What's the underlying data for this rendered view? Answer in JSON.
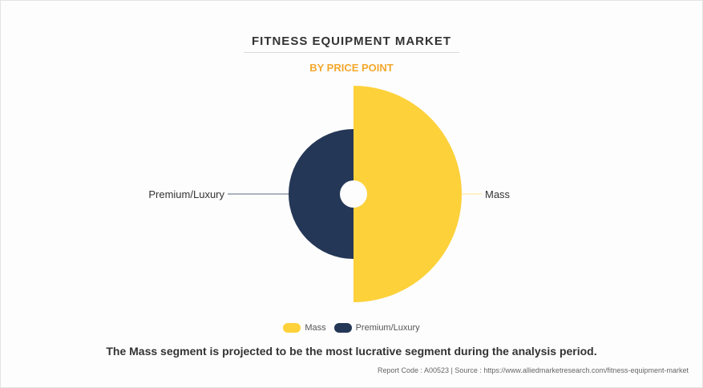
{
  "header": {
    "title": "FITNESS EQUIPMENT MARKET",
    "subtitle": "BY PRICE POINT"
  },
  "colors": {
    "subtitle": "#f4a82c",
    "mass": "#fdd13a",
    "premium": "#243757",
    "leader_premium": "#5a6a80",
    "leader_mass": "#fde58a"
  },
  "chart_data": {
    "type": "pie",
    "variant": "rose-half-donut",
    "categories": [
      "Mass",
      "Premium/Luxury"
    ],
    "values": [
      50,
      50
    ],
    "labels": [
      "Mass",
      "Premium/Luxury"
    ],
    "legend": [
      "Mass",
      "Premium/Luxury"
    ],
    "legend_position": "bottom-center"
  },
  "caption": "The Mass segment is projected to be the most lucrative segment during the analysis period.",
  "footer": {
    "text": "Report Code : A00523  |  Source : https://www.alliedmarketresearch.com/fitness-equipment-market"
  }
}
